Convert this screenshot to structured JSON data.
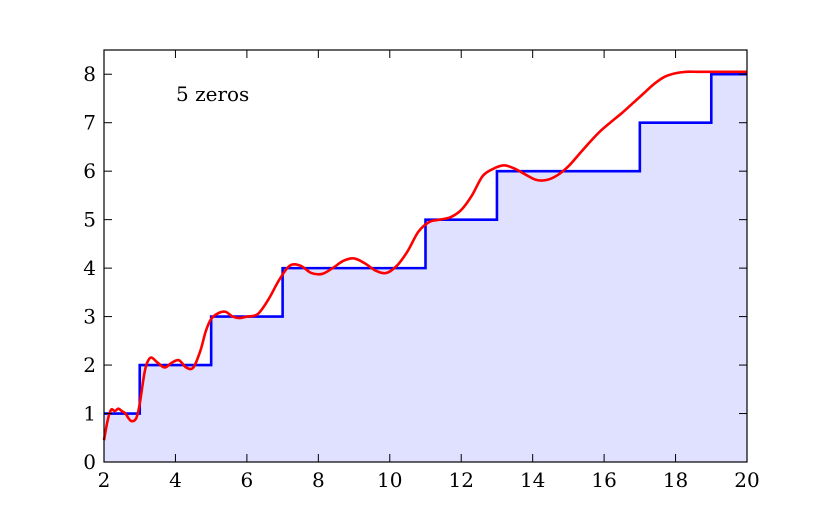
{
  "chart_data": {
    "type": "line",
    "title": "",
    "xlabel": "",
    "ylabel": "",
    "xlim": [
      2,
      20
    ],
    "ylim": [
      0,
      8.5
    ],
    "xticks": [
      2,
      4,
      6,
      8,
      10,
      12,
      14,
      16,
      18,
      20
    ],
    "yticks": [
      0,
      1,
      2,
      3,
      4,
      5,
      6,
      7,
      8
    ],
    "grid": false,
    "annotation": "5 zeros",
    "fill_color": "#e0e0ff",
    "series": [
      {
        "style": "step",
        "color": "#0000ff",
        "x": [
          2,
          3,
          5,
          7,
          11,
          13,
          17,
          19,
          20
        ],
        "y": [
          1,
          2,
          3,
          4,
          5,
          6,
          7,
          8,
          8
        ]
      },
      {
        "style": "line",
        "color": "#ff0000",
        "x": [
          2.0,
          2.1,
          2.2,
          2.3,
          2.4,
          2.5,
          2.6,
          2.75,
          2.9,
          3.0,
          3.15,
          3.3,
          3.5,
          3.7,
          3.9,
          4.1,
          4.3,
          4.5,
          4.7,
          4.85,
          5.0,
          5.2,
          5.4,
          5.6,
          5.8,
          6.0,
          6.3,
          6.6,
          6.9,
          7.2,
          7.5,
          7.8,
          8.1,
          8.4,
          8.7,
          9.0,
          9.3,
          9.6,
          9.9,
          10.2,
          10.5,
          10.8,
          11.1,
          11.4,
          11.7,
          12.0,
          12.3,
          12.6,
          12.9,
          13.2,
          13.5,
          13.8,
          14.1,
          14.4,
          14.7,
          15.0,
          15.3,
          15.6,
          15.9,
          16.2,
          16.5,
          16.8,
          17.1,
          17.4,
          17.7,
          18.0,
          18.3,
          18.6,
          18.9,
          19.2,
          19.5,
          19.8,
          20.0
        ],
        "y": [
          0.45,
          0.85,
          1.08,
          1.05,
          1.1,
          1.05,
          1.0,
          0.85,
          0.9,
          1.2,
          1.9,
          2.15,
          2.05,
          1.95,
          2.05,
          2.1,
          1.95,
          1.95,
          2.3,
          2.7,
          2.95,
          3.07,
          3.1,
          3.0,
          2.97,
          3.0,
          3.05,
          3.35,
          3.75,
          4.05,
          4.05,
          3.9,
          3.88,
          4.0,
          4.15,
          4.2,
          4.1,
          3.95,
          3.9,
          4.05,
          4.35,
          4.75,
          4.95,
          5.0,
          5.05,
          5.2,
          5.5,
          5.9,
          6.05,
          6.12,
          6.05,
          5.93,
          5.82,
          5.82,
          5.92,
          6.1,
          6.35,
          6.6,
          6.83,
          7.02,
          7.2,
          7.4,
          7.6,
          7.8,
          7.95,
          8.02,
          8.05,
          8.05,
          8.05,
          8.05,
          8.05,
          8.05,
          8.05
        ]
      }
    ]
  }
}
